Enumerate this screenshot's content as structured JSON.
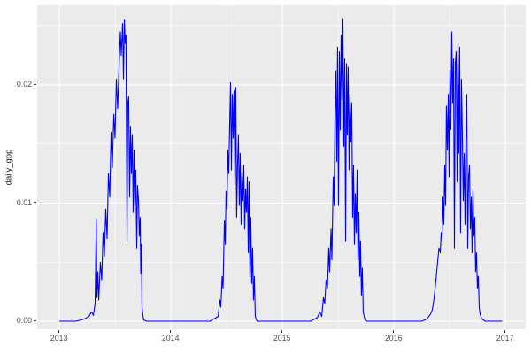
{
  "figure": {
    "background": "#FFFFFF",
    "panel_background": "#EBEBEB",
    "grid_color": "#FFFFFF",
    "axis_text_color": "#4D4D4D",
    "axis_title_color": "#111111",
    "tick_color": "#333333"
  },
  "chart_data": {
    "type": "line",
    "title": "",
    "xlabel": "",
    "ylabel": "daily_gpp",
    "series_color": "#0000FF",
    "grid": true,
    "legend": "none",
    "x_domain": [
      2012.8,
      2017.181
    ],
    "y_domain": [
      -0.000712,
      0.026738
    ],
    "x_ticks": [
      {
        "value": 2013,
        "label": "2013"
      },
      {
        "value": 2014,
        "label": "2014"
      },
      {
        "value": 2015,
        "label": "2015"
      },
      {
        "value": 2016,
        "label": "2016"
      },
      {
        "value": 2017,
        "label": "2017"
      }
    ],
    "y_ticks": [
      {
        "value": 0.0,
        "label": "0.00"
      },
      {
        "value": 0.01,
        "label": "0.01"
      },
      {
        "value": 0.02,
        "label": "0.02"
      }
    ],
    "x_minor": [
      2013.5,
      2014.5,
      2015.5,
      2016.5
    ],
    "y_minor": [
      0.005,
      0.015,
      0.025
    ],
    "series": [
      {
        "name": "daily_gpp",
        "points": [
          [
            2013.0,
            0
          ],
          [
            2013.15,
            0
          ],
          [
            2013.225,
            0.0002
          ],
          [
            2013.264,
            0.0004
          ],
          [
            2013.288,
            0.0008
          ],
          [
            2013.304,
            0.0005
          ],
          [
            2013.32,
            0.0015
          ],
          [
            2013.33,
            0.0086
          ],
          [
            2013.336,
            0.002
          ],
          [
            2013.344,
            0.0042
          ],
          [
            2013.352,
            0.0018
          ],
          [
            2013.367,
            0.005
          ],
          [
            2013.379,
            0.0035
          ],
          [
            2013.391,
            0.0075
          ],
          [
            2013.403,
            0.0055
          ],
          [
            2013.415,
            0.0095
          ],
          [
            2013.427,
            0.007
          ],
          [
            2013.439,
            0.0125
          ],
          [
            2013.451,
            0.0105
          ],
          [
            2013.463,
            0.016
          ],
          [
            2013.474,
            0.013
          ],
          [
            2013.487,
            0.0175
          ],
          [
            2013.498,
            0.0155
          ],
          [
            2013.51,
            0.0205
          ],
          [
            2013.522,
            0.018
          ],
          [
            2013.534,
            0.0215
          ],
          [
            2013.546,
            0.0245
          ],
          [
            2013.554,
            0.0225
          ],
          [
            2013.566,
            0.0252
          ],
          [
            2013.574,
            0.0205
          ],
          [
            2013.582,
            0.0255
          ],
          [
            2013.59,
            0.0235
          ],
          [
            2013.596,
            0.0242
          ],
          [
            2013.606,
            0.0067
          ],
          [
            2013.613,
            0.0185
          ],
          [
            2013.621,
            0.019
          ],
          [
            2013.629,
            0.0105
          ],
          [
            2013.637,
            0.0165
          ],
          [
            2013.645,
            0.0125
          ],
          [
            2013.653,
            0.0158
          ],
          [
            2013.661,
            0.0092
          ],
          [
            2013.669,
            0.0145
          ],
          [
            2013.677,
            0.0098
          ],
          [
            2013.685,
            0.0128
          ],
          [
            2013.693,
            0.0062
          ],
          [
            2013.7,
            0.0115
          ],
          [
            2013.709,
            0.0102
          ],
          [
            2013.716,
            0.0072
          ],
          [
            2013.724,
            0.0088
          ],
          [
            2013.729,
            0.004
          ],
          [
            2013.735,
            0.0065
          ],
          [
            2013.74,
            0.0012
          ],
          [
            2013.748,
            0.0005
          ],
          [
            2013.756,
            0.0001
          ],
          [
            2013.78,
            0
          ],
          [
            2014.35,
            0
          ],
          [
            2014.423,
            0.0004
          ],
          [
            2014.439,
            0.0018
          ],
          [
            2014.447,
            0.0012
          ],
          [
            2014.459,
            0.0038
          ],
          [
            2014.467,
            0.0028
          ],
          [
            2014.479,
            0.0085
          ],
          [
            2014.487,
            0.0065
          ],
          [
            2014.494,
            0.011
          ],
          [
            2014.502,
            0.0095
          ],
          [
            2014.51,
            0.0145
          ],
          [
            2014.518,
            0.0125
          ],
          [
            2014.526,
            0.0165
          ],
          [
            2014.534,
            0.0202
          ],
          [
            2014.542,
            0.0128
          ],
          [
            2014.55,
            0.0192
          ],
          [
            2014.558,
            0.0155
          ],
          [
            2014.566,
            0.0195
          ],
          [
            2014.574,
            0.0115
          ],
          [
            2014.581,
            0.0198
          ],
          [
            2014.589,
            0.0088
          ],
          [
            2014.597,
            0.0132
          ],
          [
            2014.605,
            0.0158
          ],
          [
            2014.613,
            0.0098
          ],
          [
            2014.621,
            0.0142
          ],
          [
            2014.629,
            0.0082
          ],
          [
            2014.637,
            0.0125
          ],
          [
            2014.645,
            0.0102
          ],
          [
            2014.653,
            0.0132
          ],
          [
            2014.661,
            0.0078
          ],
          [
            2014.669,
            0.0112
          ],
          [
            2014.677,
            0.0092
          ],
          [
            2014.685,
            0.0122
          ],
          [
            2014.693,
            0.0058
          ],
          [
            2014.7,
            0.0118
          ],
          [
            2014.708,
            0.0038
          ],
          [
            2014.716,
            0.0088
          ],
          [
            2014.724,
            0.0032
          ],
          [
            2014.732,
            0.0062
          ],
          [
            2014.74,
            0.0018
          ],
          [
            2014.748,
            0.0038
          ],
          [
            2014.756,
            0.0004
          ],
          [
            2014.772,
            0
          ],
          [
            2015.25,
            0
          ],
          [
            2015.312,
            0.0003
          ],
          [
            2015.336,
            0.0008
          ],
          [
            2015.352,
            0.0004
          ],
          [
            2015.367,
            0.002
          ],
          [
            2015.379,
            0.0015
          ],
          [
            2015.391,
            0.0035
          ],
          [
            2015.403,
            0.0028
          ],
          [
            2015.415,
            0.0062
          ],
          [
            2015.423,
            0.0042
          ],
          [
            2015.435,
            0.0078
          ],
          [
            2015.443,
            0.0052
          ],
          [
            2015.455,
            0.0122
          ],
          [
            2015.463,
            0.0098
          ],
          [
            2015.47,
            0.0168
          ],
          [
            2015.479,
            0.0212
          ],
          [
            2015.487,
            0.0135
          ],
          [
            2015.494,
            0.0232
          ],
          [
            2015.502,
            0.0098
          ],
          [
            2015.51,
            0.0228
          ],
          [
            2015.518,
            0.0162
          ],
          [
            2015.526,
            0.0242
          ],
          [
            2015.534,
            0.0188
          ],
          [
            2015.542,
            0.0256
          ],
          [
            2015.55,
            0.0148
          ],
          [
            2015.558,
            0.0222
          ],
          [
            2015.566,
            0.0068
          ],
          [
            2015.574,
            0.0218
          ],
          [
            2015.581,
            0.0158
          ],
          [
            2015.589,
            0.0215
          ],
          [
            2015.597,
            0.0128
          ],
          [
            2015.605,
            0.0192
          ],
          [
            2015.613,
            0.0152
          ],
          [
            2015.621,
            0.0185
          ],
          [
            2015.629,
            0.0088
          ],
          [
            2015.637,
            0.0132
          ],
          [
            2015.645,
            0.0065
          ],
          [
            2015.653,
            0.0108
          ],
          [
            2015.661,
            0.0075
          ],
          [
            2015.669,
            0.0128
          ],
          [
            2015.677,
            0.0052
          ],
          [
            2015.685,
            0.0092
          ],
          [
            2015.693,
            0.0038
          ],
          [
            2015.7,
            0.0068
          ],
          [
            2015.708,
            0.0022
          ],
          [
            2015.716,
            0.0045
          ],
          [
            2015.724,
            0.0008
          ],
          [
            2015.74,
            0.0001
          ],
          [
            2015.756,
            0
          ],
          [
            2016.25,
            0
          ],
          [
            2016.296,
            0.0002
          ],
          [
            2016.328,
            0.0006
          ],
          [
            2016.344,
            0.001
          ],
          [
            2016.36,
            0.002
          ],
          [
            2016.375,
            0.0034
          ],
          [
            2016.391,
            0.005
          ],
          [
            2016.403,
            0.0062
          ],
          [
            2016.415,
            0.0058
          ],
          [
            2016.423,
            0.0075
          ],
          [
            2016.431,
            0.0068
          ],
          [
            2016.439,
            0.0105
          ],
          [
            2016.447,
            0.0082
          ],
          [
            2016.455,
            0.0132
          ],
          [
            2016.463,
            0.0098
          ],
          [
            2016.47,
            0.0182
          ],
          [
            2016.479,
            0.0145
          ],
          [
            2016.487,
            0.0192
          ],
          [
            2016.494,
            0.0122
          ],
          [
            2016.502,
            0.0212
          ],
          [
            2016.51,
            0.0162
          ],
          [
            2016.518,
            0.0245
          ],
          [
            2016.526,
            0.0185
          ],
          [
            2016.534,
            0.0222
          ],
          [
            2016.542,
            0.0062
          ],
          [
            2016.55,
            0.0218
          ],
          [
            2016.558,
            0.0228
          ],
          [
            2016.566,
            0.0118
          ],
          [
            2016.574,
            0.0235
          ],
          [
            2016.581,
            0.0142
          ],
          [
            2016.589,
            0.0232
          ],
          [
            2016.597,
            0.0075
          ],
          [
            2016.605,
            0.0205
          ],
          [
            2016.613,
            0.0158
          ],
          [
            2016.621,
            0.0102
          ],
          [
            2016.629,
            0.0142
          ],
          [
            2016.637,
            0.0082
          ],
          [
            2016.645,
            0.0152
          ],
          [
            2016.653,
            0.0192
          ],
          [
            2016.661,
            0.0062
          ],
          [
            2016.669,
            0.0122
          ],
          [
            2016.677,
            0.0132
          ],
          [
            2016.685,
            0.0078
          ],
          [
            2016.693,
            0.0105
          ],
          [
            2016.7,
            0.0058
          ],
          [
            2016.708,
            0.0112
          ],
          [
            2016.716,
            0.0072
          ],
          [
            2016.724,
            0.0088
          ],
          [
            2016.732,
            0.0042
          ],
          [
            2016.74,
            0.0058
          ],
          [
            2016.748,
            0.0028
          ],
          [
            2016.756,
            0.0038
          ],
          [
            2016.764,
            0.0012
          ],
          [
            2016.772,
            0.0006
          ],
          [
            2016.787,
            0.0002
          ],
          [
            2016.819,
            0
          ],
          [
            2016.97,
            0
          ]
        ]
      }
    ]
  }
}
